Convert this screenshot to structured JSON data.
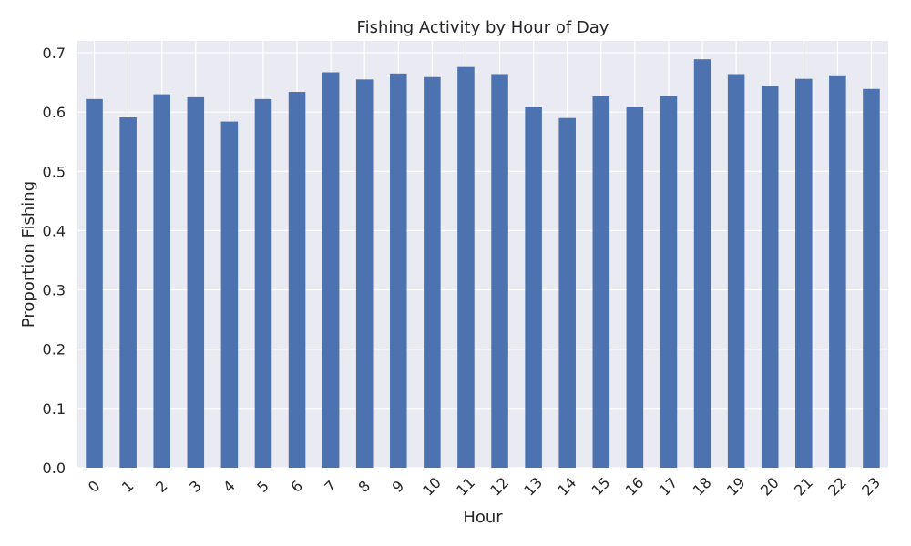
{
  "chart_data": {
    "type": "bar",
    "title": "Fishing Activity by Hour of Day",
    "xlabel": "Hour",
    "ylabel": "Proportion Fishing",
    "categories": [
      "0",
      "1",
      "2",
      "3",
      "4",
      "5",
      "6",
      "7",
      "8",
      "9",
      "10",
      "11",
      "12",
      "13",
      "14",
      "15",
      "16",
      "17",
      "18",
      "19",
      "20",
      "21",
      "22",
      "23"
    ],
    "values": [
      0.622,
      0.591,
      0.63,
      0.625,
      0.584,
      0.622,
      0.634,
      0.667,
      0.655,
      0.665,
      0.659,
      0.676,
      0.664,
      0.608,
      0.59,
      0.627,
      0.608,
      0.627,
      0.689,
      0.664,
      0.644,
      0.656,
      0.662,
      0.639
    ],
    "ylim": [
      0,
      0.72
    ],
    "yticks": [
      "0.0",
      "0.1",
      "0.2",
      "0.3",
      "0.4",
      "0.5",
      "0.6",
      "0.7"
    ],
    "grid": true,
    "colors": {
      "bar": "#4C72B0",
      "plot_background": "#EAEAF2",
      "grid": "#FFFFFF",
      "text": "#262626"
    }
  }
}
